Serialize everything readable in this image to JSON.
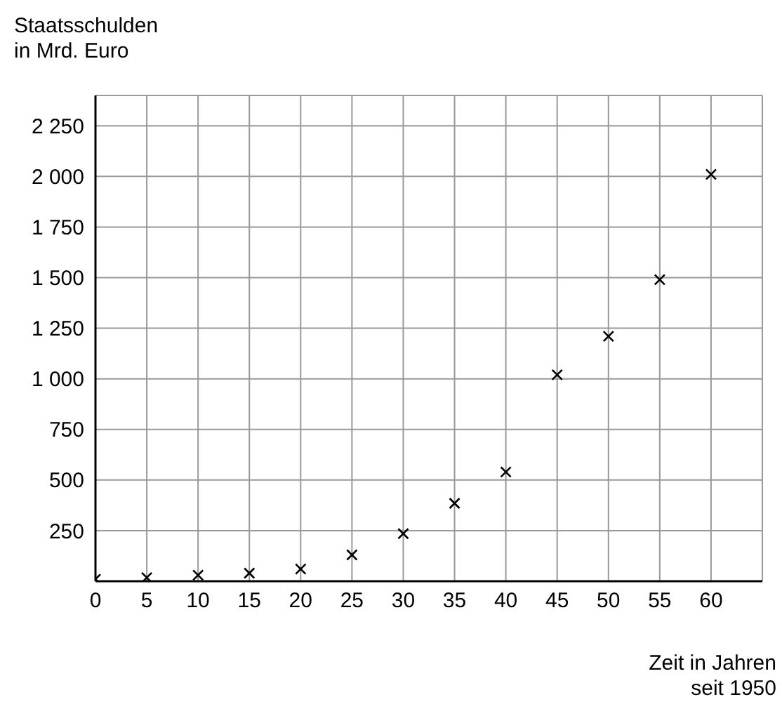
{
  "chart_data": {
    "type": "scatter",
    "xlabel": "Zeit in Jahren\nseit 1950",
    "ylabel": "Staatsschulden\nin Mrd. Euro",
    "x": [
      0,
      5,
      10,
      15,
      20,
      25,
      30,
      35,
      40,
      45,
      50,
      55,
      60
    ],
    "series": [
      {
        "color": "#000000",
        "values": [
          10,
          18,
          30,
          40,
          60,
          130,
          235,
          385,
          540,
          1020,
          1210,
          1490,
          2010
        ]
      }
    ],
    "xlim": [
      0,
      65
    ],
    "xticks": [
      0,
      5,
      10,
      15,
      20,
      25,
      30,
      35,
      40,
      45,
      50,
      55,
      60
    ],
    "ylim": [
      0,
      2400
    ],
    "yticks": [
      {
        "value": 250,
        "label": "250"
      },
      {
        "value": 500,
        "label": "500"
      },
      {
        "value": 750,
        "label": "750"
      },
      {
        "value": 1000,
        "label": "1 000"
      },
      {
        "value": 1250,
        "label": "1 250"
      },
      {
        "value": 1500,
        "label": "1 500"
      },
      {
        "value": 1750,
        "label": "1 750"
      },
      {
        "value": 2000,
        "label": "2 000"
      },
      {
        "value": 2250,
        "label": "2 250"
      }
    ],
    "grid": true,
    "legend": false,
    "marker": "cross"
  }
}
